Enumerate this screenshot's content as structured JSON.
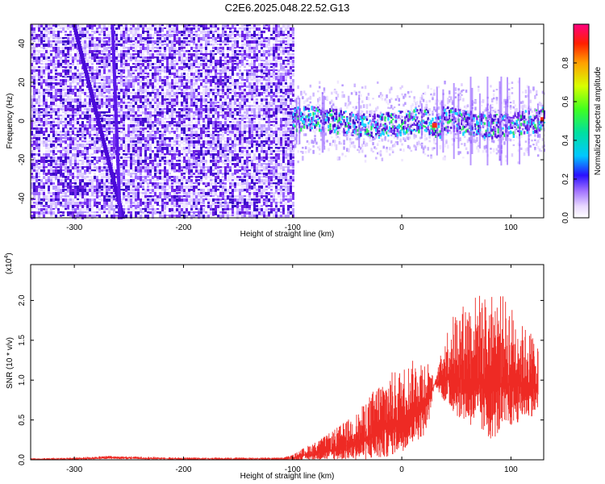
{
  "title": "C2E6.2025.048.22.52.G13",
  "chart_data": [
    {
      "type": "heatmap",
      "xlabel": "Height of straight line (km)",
      "ylabel": "Frequency (Hz)",
      "xlim": [
        -340,
        130
      ],
      "ylim": [
        -50,
        50
      ],
      "xticks": [
        -300,
        -200,
        -100,
        0,
        100
      ],
      "yticks": [
        -40,
        -20,
        0,
        20,
        40
      ],
      "colorbar": {
        "label": "Normalized spectral amplitude",
        "range": [
          0.0,
          1.0
        ],
        "ticks": [
          "0.0",
          "0.2",
          "0.4",
          "0.6",
          "0.8"
        ],
        "tick_values": [
          0.0,
          0.2,
          0.4,
          0.6,
          0.8
        ]
      },
      "features": {
        "noise_region_x": [
          -340,
          -100
        ],
        "signal_band_center_hz": 0,
        "signal_band_halfwidth_hz": 6,
        "peak_x_km": 30,
        "diagonal_trace": {
          "x": [
            -300,
            -255
          ],
          "y": [
            50,
            -50
          ]
        },
        "secondary_trace": {
          "x": [
            -265,
            -258
          ],
          "y": [
            50,
            -50
          ]
        }
      },
      "colors": {
        "low": "#d8c8ff",
        "mid": "#6a1fe0",
        "high_1": "#1fd4ff",
        "high_2": "#30e860",
        "peak": "#ff2a1a"
      }
    },
    {
      "type": "area",
      "xlabel": "Height of straight line (km)",
      "ylabel": "SNR (10 * v/v)",
      "yscale_label": "(x10",
      "yscale_exp": "4",
      "yscale_close": ")",
      "xlim": [
        -340,
        130
      ],
      "ylim": [
        0,
        2.45
      ],
      "xticks": [
        -300,
        -200,
        -100,
        0,
        100
      ],
      "yticks": [
        "0.0",
        "0.5",
        "1.0",
        "1.5",
        "2.0"
      ],
      "ytick_values": [
        0.0,
        0.5,
        1.0,
        1.5,
        2.0
      ],
      "series": [
        {
          "x": [
            -340,
            -300,
            -270,
            -200,
            -110,
            -100,
            -90,
            -80,
            -70,
            -60,
            -50,
            -40,
            -30,
            -20,
            -10,
            0,
            10,
            20,
            25,
            30,
            40,
            50,
            60,
            70,
            80,
            90,
            100,
            110,
            120,
            125
          ],
          "y_upper": [
            0.02,
            0.03,
            0.05,
            0.03,
            0.03,
            0.06,
            0.15,
            0.22,
            0.3,
            0.4,
            0.5,
            0.6,
            0.8,
            1.0,
            1.1,
            1.15,
            1.25,
            1.3,
            1.25,
            0.95,
            1.6,
            1.9,
            2.0,
            2.1,
            2.05,
            2.1,
            1.95,
            1.7,
            1.6,
            1.5
          ],
          "y_lower": [
            0.0,
            0.0,
            0.01,
            0.0,
            0.0,
            0.0,
            0.0,
            0.0,
            0.0,
            0.0,
            0.0,
            0.0,
            0.0,
            0.0,
            0.05,
            0.1,
            0.2,
            0.3,
            0.5,
            0.95,
            0.7,
            0.55,
            0.45,
            0.35,
            0.25,
            0.3,
            0.4,
            0.5,
            0.55,
            0.6
          ]
        }
      ],
      "colors": {
        "fill": "#ee2a24"
      }
    }
  ]
}
